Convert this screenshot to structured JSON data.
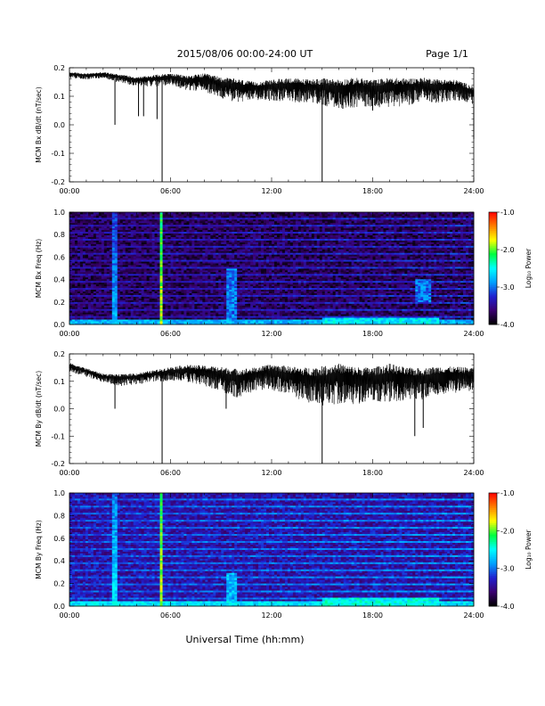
{
  "header": {
    "title": "2015/08/06  00:00-24:00 UT",
    "page": "Page 1/1"
  },
  "footer": {
    "xlabel": "Universal Time (hh:mm)"
  },
  "colorbar": {
    "label": "Log₁₀ Power",
    "ticks": [
      "-1.0",
      "-2.0",
      "-3.0",
      "-4.0"
    ],
    "range": [
      -4.0,
      -1.0
    ],
    "colormap": [
      "#000000",
      "#3a0070",
      "#2020d0",
      "#00a0ff",
      "#00ffff",
      "#00ff40",
      "#ffff00",
      "#ff8000",
      "#ff0000"
    ]
  },
  "chart_data": [
    {
      "type": "line",
      "ylabel": "MCM Bx dB/dt (nT/sec)",
      "xticks": [
        "00:00",
        "06:00",
        "12:00",
        "18:00",
        "24:00"
      ],
      "yticks": [
        "0.2",
        "0.1",
        "0.0",
        "-0.1",
        "-0.2"
      ],
      "xlim": [
        0,
        24
      ],
      "ylim": [
        -0.2,
        0.2
      ],
      "series": [
        {
          "x": [
            0,
            1,
            2,
            3,
            4,
            5,
            6,
            7,
            8,
            9,
            10,
            11,
            12,
            13,
            14,
            15,
            16,
            17,
            18,
            19,
            20,
            21,
            22,
            23,
            24
          ],
          "y": [
            0.18,
            0.175,
            0.18,
            0.17,
            0.16,
            0.165,
            0.17,
            0.16,
            0.165,
            0.15,
            0.14,
            0.135,
            0.14,
            0.145,
            0.14,
            0.14,
            0.135,
            0.14,
            0.135,
            0.14,
            0.14,
            0.145,
            0.14,
            0.14,
            0.12
          ],
          "spread": [
            0.01,
            0.01,
            0.01,
            0.015,
            0.015,
            0.02,
            0.02,
            0.025,
            0.03,
            0.035,
            0.04,
            0.03,
            0.035,
            0.04,
            0.04,
            0.045,
            0.05,
            0.05,
            0.045,
            0.05,
            0.045,
            0.04,
            0.04,
            0.035,
            0.03
          ]
        }
      ],
      "spikes": [
        {
          "x": 2.7,
          "y": 0.0
        },
        {
          "x": 4.1,
          "y": 0.03
        },
        {
          "x": 4.4,
          "y": 0.03
        },
        {
          "x": 5.2,
          "y": 0.02
        },
        {
          "x": 5.5,
          "y": -0.2
        },
        {
          "x": 15.0,
          "y": -0.2
        },
        {
          "x": 18.0,
          "y": 0.05
        },
        {
          "x": 24.0,
          "y": -0.05
        }
      ]
    },
    {
      "type": "heatmap",
      "ylabel": "MCM Bx Freq (Hz)",
      "xticks": [
        "00:00",
        "06:00",
        "12:00",
        "18:00",
        "24:00"
      ],
      "yticks": [
        "1.0",
        "0.8",
        "0.6",
        "0.4",
        "0.2",
        "0.0"
      ],
      "xlim": [
        0,
        24
      ],
      "ylim": [
        0,
        1.0
      ],
      "background_level": -3.7,
      "harmonic_spacing_hz": 0.0625,
      "harmonic_level": -3.2,
      "low_freq_level": -2.8,
      "vertical_lines": [
        {
          "x": 2.7,
          "level": -2.8
        },
        {
          "x": 5.5,
          "level": -1.8
        }
      ],
      "patches": [
        {
          "x": [
            9.3,
            10.0
          ],
          "f": [
            0.05,
            0.5
          ],
          "level": -3.0
        },
        {
          "x": [
            15.0,
            22.0
          ],
          "f": [
            0.0,
            0.06
          ],
          "level": -2.6
        },
        {
          "x": [
            20.5,
            21.5
          ],
          "f": [
            0.2,
            0.4
          ],
          "level": -3.0
        }
      ]
    },
    {
      "type": "line",
      "ylabel": "MCM By dB/dt (nT/sec)",
      "xticks": [
        "00:00",
        "06:00",
        "12:00",
        "18:00",
        "24:00"
      ],
      "yticks": [
        "0.2",
        "0.1",
        "0.0",
        "-0.1",
        "-0.2"
      ],
      "xlim": [
        0,
        24
      ],
      "ylim": [
        -0.2,
        0.2
      ],
      "series": [
        {
          "x": [
            0,
            1,
            2,
            3,
            4,
            5,
            6,
            7,
            8,
            9,
            10,
            11,
            12,
            13,
            14,
            15,
            16,
            17,
            18,
            19,
            20,
            21,
            22,
            23,
            24
          ],
          "y": [
            0.16,
            0.14,
            0.12,
            0.115,
            0.12,
            0.13,
            0.14,
            0.145,
            0.14,
            0.13,
            0.12,
            0.13,
            0.14,
            0.13,
            0.12,
            0.12,
            0.13,
            0.12,
            0.12,
            0.13,
            0.12,
            0.12,
            0.13,
            0.13,
            0.13
          ],
          "spread": [
            0.015,
            0.015,
            0.015,
            0.02,
            0.02,
            0.02,
            0.025,
            0.03,
            0.035,
            0.045,
            0.05,
            0.04,
            0.045,
            0.05,
            0.06,
            0.07,
            0.07,
            0.065,
            0.06,
            0.07,
            0.06,
            0.055,
            0.05,
            0.045,
            0.04
          ]
        }
      ],
      "spikes": [
        {
          "x": 2.7,
          "y": 0.0
        },
        {
          "x": 5.5,
          "y": -0.2
        },
        {
          "x": 9.3,
          "y": 0.0
        },
        {
          "x": 15.0,
          "y": -0.2
        },
        {
          "x": 20.5,
          "y": -0.1
        },
        {
          "x": 21.0,
          "y": -0.07
        }
      ]
    },
    {
      "type": "heatmap",
      "ylabel": "MCM By Freq (Hz)",
      "xticks": [
        "00:00",
        "06:00",
        "12:00",
        "18:00",
        "24:00"
      ],
      "yticks": [
        "1.0",
        "0.8",
        "0.6",
        "0.4",
        "0.2",
        "0.0"
      ],
      "xlim": [
        0,
        24
      ],
      "ylim": [
        0,
        1.0
      ],
      "background_level": -3.4,
      "harmonic_spacing_hz": 0.0625,
      "harmonic_level": -2.9,
      "low_freq_level": -2.6,
      "vertical_lines": [
        {
          "x": 2.7,
          "level": -2.6
        },
        {
          "x": 5.5,
          "level": -1.8
        }
      ],
      "patches": [
        {
          "x": [
            9.3,
            10.0
          ],
          "f": [
            0.05,
            0.3
          ],
          "level": -2.8
        },
        {
          "x": [
            15.0,
            22.0
          ],
          "f": [
            0.0,
            0.08
          ],
          "level": -2.5
        }
      ]
    }
  ]
}
